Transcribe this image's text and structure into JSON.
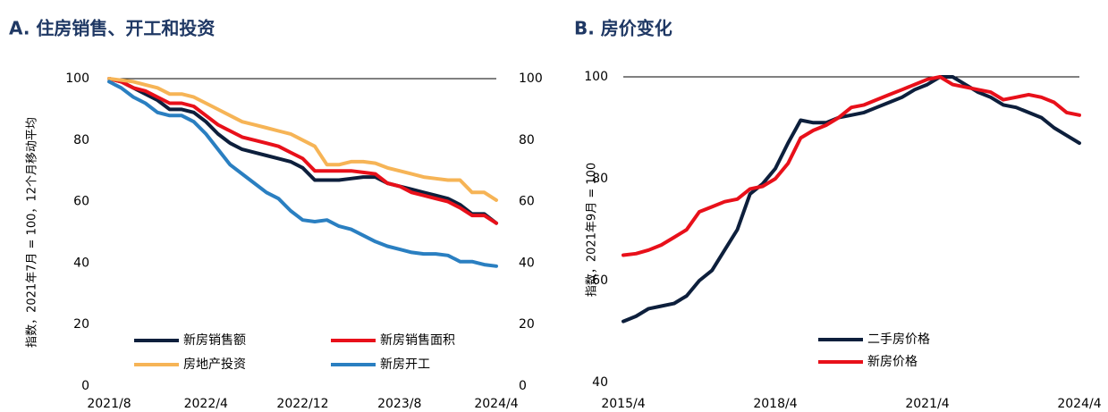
{
  "chart_data": [
    {
      "type": "line",
      "title": "A. 住房销售、开工和投资",
      "y_label": "指数，2021年7月 = 100，12个月移动平均",
      "categories": [
        "2021/8",
        null,
        null,
        null,
        null,
        null,
        null,
        null,
        "2022/4",
        null,
        null,
        null,
        null,
        null,
        null,
        null,
        "2022/12",
        null,
        null,
        null,
        null,
        null,
        null,
        null,
        "2023/8",
        null,
        null,
        null,
        null,
        null,
        null,
        null,
        "2024/4"
      ],
      "series": [
        {
          "name": "新房销售额",
          "color": "#0d1f3c",
          "values": [
            100,
            99,
            97,
            95,
            93,
            90,
            90,
            89,
            86,
            82,
            79,
            77,
            76,
            75,
            74,
            73,
            71,
            67,
            67,
            67,
            67.5,
            68,
            68,
            66,
            65,
            64,
            63,
            62,
            61,
            59,
            56,
            56,
            53
          ]
        },
        {
          "name": "新房销售面积",
          "color": "#e8101a",
          "values": [
            100,
            99,
            97,
            96,
            94,
            92,
            92,
            91,
            88,
            85,
            83,
            81,
            80,
            79,
            78,
            76,
            74,
            70,
            70,
            70,
            70,
            69.5,
            69,
            66,
            65,
            63,
            62,
            61,
            60,
            58,
            55.5,
            55.5,
            53
          ]
        },
        {
          "name": "房地产投资",
          "color": "#f6b456",
          "values": [
            100,
            99.5,
            99,
            98,
            97,
            95,
            95,
            94,
            92,
            90,
            88,
            86,
            85,
            84,
            83,
            82,
            80,
            78,
            72,
            72,
            73,
            73,
            72.5,
            71,
            70,
            69,
            68,
            67.5,
            67,
            67,
            63,
            63,
            60.5
          ]
        },
        {
          "name": "新房开工",
          "color": "#2a7fc1",
          "values": [
            99,
            97,
            94,
            92,
            89,
            88,
            88,
            86,
            82,
            77,
            72,
            69,
            66,
            63,
            61,
            57,
            54,
            53.5,
            54,
            52,
            51,
            49,
            47,
            45.5,
            44.5,
            43.5,
            43,
            43,
            42.5,
            40.5,
            40.5,
            39.5,
            39
          ]
        }
      ],
      "ylim": [
        0,
        100
      ],
      "yticks": [
        0,
        20,
        40,
        60,
        80,
        100
      ],
      "y2lim": [
        0,
        100
      ],
      "y2ticks": [
        0,
        20,
        40,
        60,
        80,
        100
      ],
      "legend": "lower center"
    },
    {
      "type": "line",
      "title": "B. 房价变化",
      "y_label": "指数，2021年9月 = 100",
      "categories": [
        "2015/4",
        null,
        null,
        null,
        null,
        null,
        null,
        null,
        null,
        null,
        null,
        null,
        "2018/4",
        null,
        null,
        null,
        null,
        null,
        null,
        null,
        null,
        null,
        null,
        null,
        "2021/4",
        null,
        null,
        null,
        null,
        null,
        null,
        null,
        null,
        null,
        null,
        null,
        "2024/4"
      ],
      "series": [
        {
          "name": "二手房价格",
          "color": "#0d1f3c",
          "values": [
            52,
            53,
            54.5,
            55,
            55.5,
            57,
            60,
            62,
            66,
            70,
            77,
            79,
            82,
            87,
            91.5,
            91,
            91,
            92,
            92.5,
            93,
            94,
            95,
            96,
            97.5,
            98.5,
            100,
            100,
            98.5,
            97,
            96,
            94.5,
            94,
            93,
            92,
            90,
            88.5,
            87
          ]
        },
        {
          "name": "新房价格",
          "color": "#e8101a",
          "values": [
            65,
            65.3,
            66,
            67,
            68.5,
            70,
            73.5,
            74.5,
            75.5,
            76,
            78,
            78.5,
            80,
            83,
            88,
            89.5,
            90.5,
            92,
            94,
            94.5,
            95.5,
            96.5,
            97.5,
            98.5,
            99.5,
            100,
            98.5,
            98,
            97.5,
            97,
            95.5,
            96,
            96.5,
            96,
            95,
            93,
            92.5
          ]
        }
      ],
      "ylim": [
        40,
        100
      ],
      "yticks": [
        40,
        60,
        80,
        100
      ],
      "legend": "lower center"
    }
  ]
}
